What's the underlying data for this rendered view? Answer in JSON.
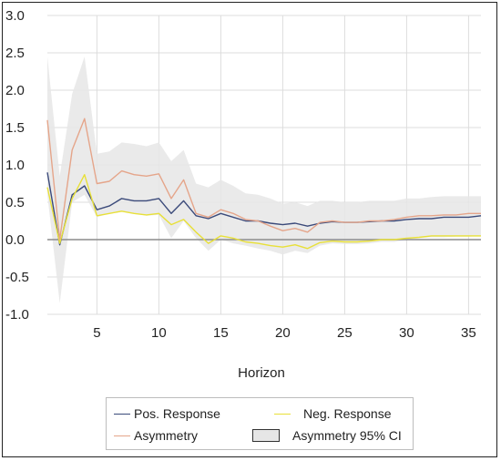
{
  "chart_data": {
    "type": "line",
    "title": "",
    "xlabel": "Horizon",
    "ylabel": "",
    "xlim": [
      1,
      36
    ],
    "ylim": [
      -1.0,
      3.0
    ],
    "x_ticks": [
      5,
      10,
      15,
      20,
      25,
      30,
      35
    ],
    "y_ticks": [
      -1.0,
      -0.5,
      0.0,
      0.5,
      1.0,
      1.5,
      2.0,
      2.5,
      3.0
    ],
    "y_tick_labels": [
      "-1.0",
      "-0.5",
      "0.0",
      "0.5",
      "1.0",
      "1.5",
      "2.0",
      "2.5",
      "3.0"
    ],
    "x_tick_labels": [
      "5",
      "10",
      "15",
      "20",
      "25",
      "30",
      "35"
    ],
    "grid": true,
    "legend_position": "bottom",
    "x": [
      1,
      2,
      3,
      4,
      5,
      6,
      7,
      8,
      9,
      10,
      11,
      12,
      13,
      14,
      15,
      16,
      17,
      18,
      19,
      20,
      21,
      22,
      23,
      24,
      25,
      26,
      27,
      28,
      29,
      30,
      31,
      32,
      33,
      34,
      35,
      36
    ],
    "series": [
      {
        "name": "Pos. Response",
        "color": "#3b4a7a",
        "values": [
          0.9,
          -0.07,
          0.6,
          0.72,
          0.4,
          0.45,
          0.55,
          0.52,
          0.52,
          0.55,
          0.35,
          0.52,
          0.32,
          0.28,
          0.35,
          0.3,
          0.25,
          0.25,
          0.22,
          0.2,
          0.22,
          0.18,
          0.22,
          0.24,
          0.23,
          0.23,
          0.24,
          0.25,
          0.25,
          0.27,
          0.28,
          0.28,
          0.3,
          0.3,
          0.3,
          0.32
        ]
      },
      {
        "name": "Neg. Response",
        "color": "#e8e038",
        "values": [
          0.7,
          -0.05,
          0.55,
          0.87,
          0.32,
          0.35,
          0.38,
          0.35,
          0.33,
          0.35,
          0.2,
          0.27,
          0.1,
          -0.05,
          0.05,
          0.02,
          -0.03,
          -0.05,
          -0.08,
          -0.1,
          -0.07,
          -0.12,
          -0.04,
          -0.02,
          -0.03,
          -0.03,
          -0.02,
          0.0,
          0.0,
          0.02,
          0.03,
          0.05,
          0.05,
          0.05,
          0.05,
          0.05
        ]
      },
      {
        "name": "Asymmetry",
        "color": "#e5a58a",
        "values": [
          1.6,
          0.0,
          1.2,
          1.62,
          0.75,
          0.78,
          0.92,
          0.87,
          0.85,
          0.88,
          0.55,
          0.8,
          0.35,
          0.3,
          0.4,
          0.35,
          0.27,
          0.25,
          0.18,
          0.12,
          0.15,
          0.1,
          0.23,
          0.25,
          0.23,
          0.23,
          0.25,
          0.25,
          0.27,
          0.3,
          0.32,
          0.32,
          0.33,
          0.33,
          0.35,
          0.35
        ]
      }
    ],
    "ci_band": {
      "name": "Asymmetry 95% CI",
      "fill": "#e6e6e6",
      "lower": [
        0.6,
        -0.85,
        0.5,
        0.6,
        0.3,
        0.35,
        0.38,
        0.35,
        0.32,
        0.33,
        0.02,
        0.25,
        0.02,
        -0.15,
        0.0,
        -0.05,
        -0.08,
        -0.12,
        -0.15,
        -0.2,
        -0.15,
        -0.18,
        -0.08,
        -0.05,
        -0.06,
        -0.06,
        -0.05,
        -0.03,
        -0.03,
        0.0,
        0.02,
        0.03,
        0.03,
        0.04,
        0.04,
        0.05
      ],
      "upper": [
        2.45,
        0.85,
        1.95,
        2.45,
        1.15,
        1.18,
        1.3,
        1.28,
        1.25,
        1.3,
        1.05,
        1.2,
        0.75,
        0.7,
        0.8,
        0.72,
        0.62,
        0.6,
        0.55,
        0.48,
        0.5,
        0.45,
        0.52,
        0.52,
        0.5,
        0.5,
        0.52,
        0.52,
        0.52,
        0.55,
        0.55,
        0.57,
        0.58,
        0.58,
        0.58,
        0.58
      ]
    },
    "colors": {
      "grid": "#dcdcdc",
      "zero_line": "#8c8c8c",
      "ci_fill": "#e6e6e6",
      "ci_border": "#333333"
    }
  },
  "legend": {
    "items": [
      {
        "label": "Pos. Response",
        "kind": "line",
        "color": "#3b4a7a"
      },
      {
        "label": "Neg. Response",
        "kind": "line",
        "color": "#e8e038"
      },
      {
        "label": "Asymmetry",
        "kind": "line",
        "color": "#e5a58a"
      },
      {
        "label": "Asymmetry 95% CI",
        "kind": "box",
        "color": "#e6e6e6"
      }
    ]
  }
}
